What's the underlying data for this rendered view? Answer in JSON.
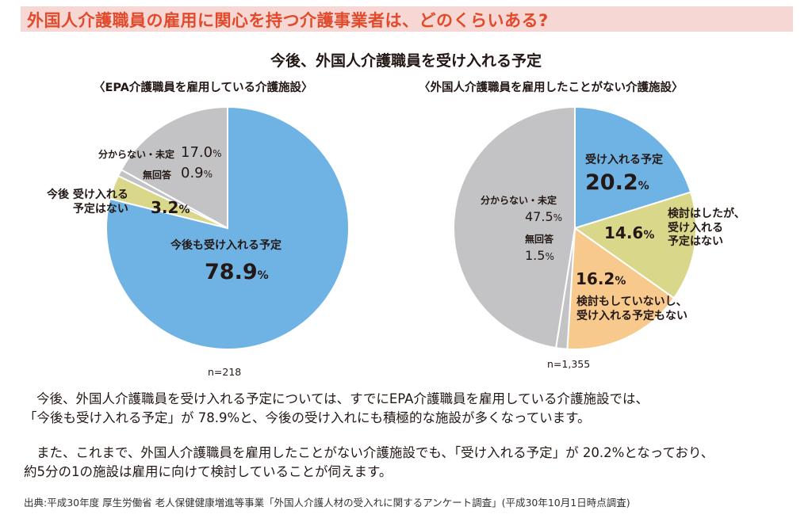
{
  "banner": "外国人介護職員の雇用に関心を持つ介護事業者は、どのくらいある?",
  "main_title": "今後、外国人介護職員を受け入れる予定",
  "colors": {
    "blue": "#6fb2e4",
    "olive": "#d9d88a",
    "gray": "#c3c3c5",
    "orange": "#f7c98c",
    "banner_bg": "#f6d7d3",
    "banner_text": "#e24a2c"
  },
  "chart_data": [
    {
      "type": "pie",
      "title": "〈EPA介護職員を雇用している介護施設〉",
      "n": "n=218",
      "slices": [
        {
          "label": "今後も受け入れる予定",
          "value": 78.9,
          "value_text": "78.9",
          "color": "#6fb2e4"
        },
        {
          "label": "今後 受け入れる予定はない",
          "value": 3.2,
          "value_text": "3.2",
          "color": "#d9d88a"
        },
        {
          "label": "無回答",
          "value": 0.9,
          "value_text": "0.9",
          "color": "#c3c3c5"
        },
        {
          "label": "分からない・未定",
          "value": 17.0,
          "value_text": "17.0",
          "color": "#c3c3c5"
        }
      ]
    },
    {
      "type": "pie",
      "title": "〈外国人介護職員を雇用したことがない介護施設〉",
      "n": "n=1,355",
      "slices": [
        {
          "label": "受け入れる予定",
          "value": 20.2,
          "value_text": "20.2",
          "color": "#6fb2e4"
        },
        {
          "label": "検討はしたが、受け入れる予定はない",
          "value": 14.6,
          "value_text": "14.6",
          "color": "#d9d88a"
        },
        {
          "label": "検討もしていないし、受け入れる予定もない",
          "value": 16.2,
          "value_text": "16.2",
          "color": "#f7c98c"
        },
        {
          "label": "無回答",
          "value": 1.5,
          "value_text": "1.5",
          "color": "#c3c3c5"
        },
        {
          "label": "分からない・未定",
          "value": 47.5,
          "value_text": "47.5",
          "color": "#c3c3c5"
        }
      ]
    }
  ],
  "labels": {
    "p1_main_1": "今後も受け入れる予定",
    "p1_main_2": "78.9",
    "p1_no_1": "今後 受け入れる",
    "p1_no_2": "予定はない",
    "p1_no_val": "3.2",
    "p1_unknown": "分からない・未定",
    "p1_unknown_val": "17.0",
    "p1_noans": "無回答",
    "p1_noans_val": "0.9",
    "p2_yes_1": "受け入れる予定",
    "p2_yes_val": "20.2",
    "p2_considered_1": "検討はしたが、",
    "p2_considered_2": "受け入れる",
    "p2_considered_3": "予定はない",
    "p2_considered_val": "14.6",
    "p2_notconsidered_1": "検討もしていないし、",
    "p2_notconsidered_2": "受け入れる予定もない",
    "p2_notconsidered_val": "16.2",
    "p2_unknown": "分からない・未定",
    "p2_unknown_val": "47.5",
    "p2_noans": "無回答",
    "p2_noans_val": "1.5",
    "percent": "%"
  },
  "paragraph1_line1": "今後、外国人介護職員を受け入れる予定については、すでにEPA介護職員を雇用している介護施設では、",
  "paragraph1_line2": "「今後も受け入れる予定」が 78.9%と、今後の受け入れにも積極的な施設が多くなっています。",
  "paragraph2_line1": "また、これまで、外国人介護職員を雇用したことがない介護施設でも、「受け入れる予定」が 20.2%となっており、",
  "paragraph2_line2": "約5分の1の施設は雇用に向けて検討していることが伺えます。",
  "source": "出典:平成30年度 厚生労働省 老人保健健康増進等事業「外国人介護人材の受入れに関するアンケート調査」(平成30年10月1日時点調査)"
}
